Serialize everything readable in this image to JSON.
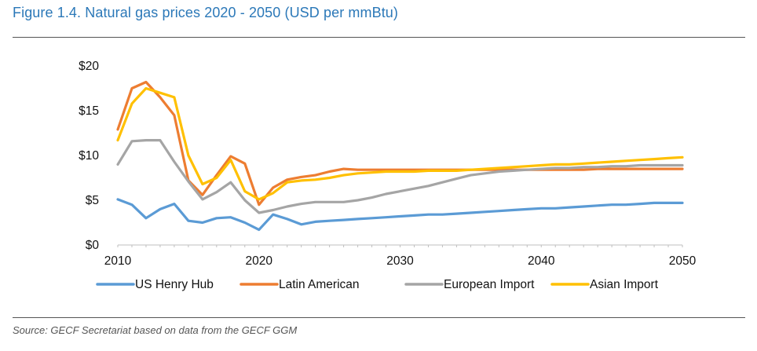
{
  "header": {
    "title": "Figure 1.4. Natural gas prices 2020 - 2050 (USD per mmBtu)"
  },
  "footer": {
    "source": "Source: GECF Secretariat based on data from the GECF GGM"
  },
  "chart_data": {
    "type": "line",
    "title": "Figure 1.4. Natural gas prices 2020 - 2050 (USD per mmBtu)",
    "xlabel": "",
    "ylabel": "",
    "xlim": [
      2010,
      2050
    ],
    "ylim": [
      0,
      20
    ],
    "x_ticks": [
      2010,
      2020,
      2030,
      2040,
      2050
    ],
    "y_ticks": [
      0,
      5,
      10,
      15,
      20
    ],
    "y_tick_labels": [
      "$0",
      "$5",
      "$10",
      "$15",
      "$20"
    ],
    "grid": false,
    "legend_position": "bottom",
    "x": [
      2010,
      2011,
      2012,
      2013,
      2014,
      2015,
      2016,
      2017,
      2018,
      2019,
      2020,
      2021,
      2022,
      2023,
      2024,
      2025,
      2026,
      2027,
      2028,
      2029,
      2030,
      2031,
      2032,
      2033,
      2034,
      2035,
      2036,
      2037,
      2038,
      2039,
      2040,
      2041,
      2042,
      2043,
      2044,
      2045,
      2046,
      2047,
      2048,
      2049,
      2050
    ],
    "series": [
      {
        "name": "US Henry Hub",
        "color": "#5b9bd5",
        "values": [
          5.1,
          4.5,
          3.0,
          4.0,
          4.6,
          2.7,
          2.5,
          3.0,
          3.1,
          2.5,
          1.7,
          3.4,
          2.9,
          2.3,
          2.6,
          2.7,
          2.8,
          2.9,
          3.0,
          3.1,
          3.2,
          3.3,
          3.4,
          3.4,
          3.5,
          3.6,
          3.7,
          3.8,
          3.9,
          4.0,
          4.1,
          4.1,
          4.2,
          4.3,
          4.4,
          4.5,
          4.5,
          4.6,
          4.7,
          4.7,
          4.7
        ]
      },
      {
        "name": "Latin American",
        "color": "#ed7d31",
        "values": [
          12.9,
          17.5,
          18.2,
          16.5,
          14.5,
          7.2,
          5.6,
          7.8,
          9.9,
          9.1,
          4.5,
          6.4,
          7.3,
          7.6,
          7.8,
          8.2,
          8.5,
          8.4,
          8.4,
          8.4,
          8.4,
          8.4,
          8.4,
          8.4,
          8.4,
          8.4,
          8.4,
          8.4,
          8.4,
          8.4,
          8.4,
          8.4,
          8.4,
          8.4,
          8.5,
          8.5,
          8.5,
          8.5,
          8.5,
          8.5,
          8.5
        ]
      },
      {
        "name": "European Import",
        "color": "#a5a5a5",
        "values": [
          9.0,
          11.6,
          11.7,
          11.7,
          9.3,
          7.1,
          5.1,
          5.9,
          7.0,
          5.0,
          3.6,
          3.9,
          4.3,
          4.6,
          4.8,
          4.8,
          4.8,
          5.0,
          5.3,
          5.7,
          6.0,
          6.3,
          6.6,
          7.0,
          7.4,
          7.8,
          8.0,
          8.2,
          8.3,
          8.4,
          8.5,
          8.6,
          8.6,
          8.7,
          8.7,
          8.8,
          8.8,
          8.9,
          8.9,
          8.9,
          8.9
        ]
      },
      {
        "name": "Asian Import",
        "color": "#ffc000",
        "values": [
          11.7,
          15.8,
          17.5,
          17.0,
          16.5,
          10.0,
          6.8,
          7.5,
          9.5,
          6.0,
          5.1,
          5.8,
          7.0,
          7.2,
          7.3,
          7.5,
          7.8,
          8.0,
          8.1,
          8.2,
          8.2,
          8.2,
          8.3,
          8.3,
          8.3,
          8.4,
          8.5,
          8.6,
          8.7,
          8.8,
          8.9,
          9.0,
          9.0,
          9.1,
          9.2,
          9.3,
          9.4,
          9.5,
          9.6,
          9.7,
          9.8
        ]
      }
    ]
  }
}
